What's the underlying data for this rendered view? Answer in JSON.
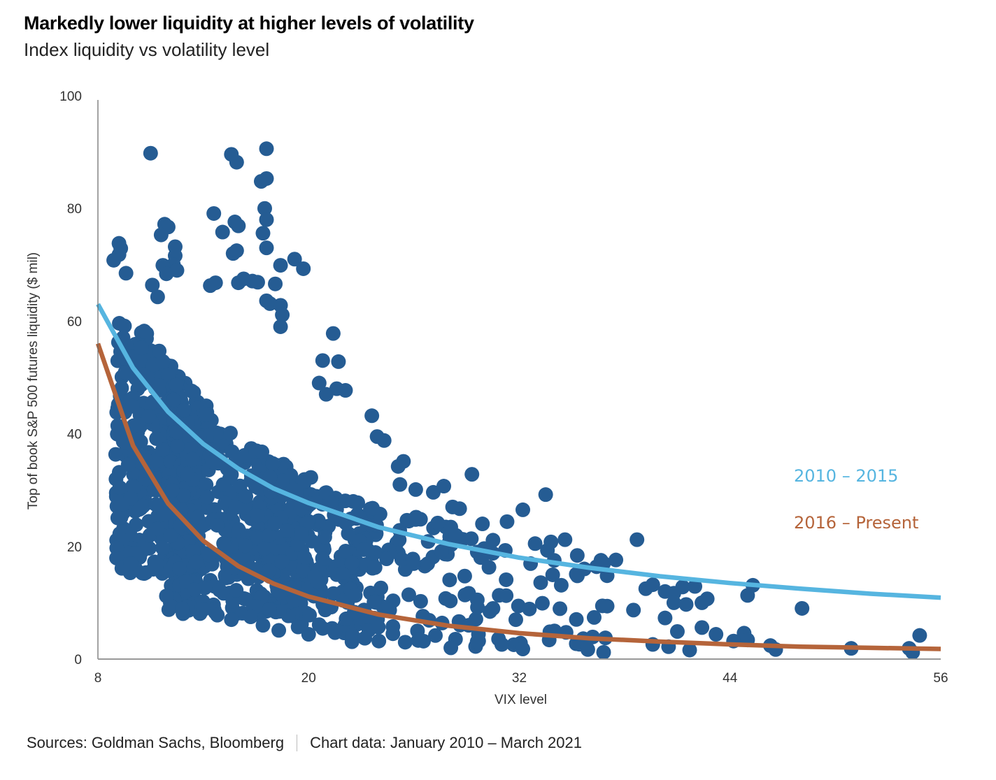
{
  "header": {
    "title": "Markedly lower liquidity at higher levels of volatility",
    "subtitle": "Index liquidity vs volatility level"
  },
  "footer": {
    "sources": "Sources: Goldman Sachs, Bloomberg",
    "chart_note": "Chart data: January 2010 – March 2021"
  },
  "chart_data": {
    "type": "scatter",
    "title": "Markedly lower liquidity at higher levels of volatility",
    "subtitle": "Index liquidity vs volatility level",
    "xlabel": "VIX level",
    "ylabel": "Top of book S&P 500 futures liquidity ($ mil)",
    "xlim": [
      8,
      56
    ],
    "ylim": [
      0,
      100
    ],
    "xticks": [
      "8",
      "20",
      "32",
      "44",
      "56"
    ],
    "yticks": [
      "0",
      "20",
      "40",
      "60",
      "80",
      "100"
    ],
    "grid": false,
    "legend": "right, inline labels",
    "colors": {
      "points": "#255c93",
      "fit_2010_2015": "#56b5e0",
      "fit_2016_present": "#b5643a"
    },
    "series": [
      {
        "name": "Daily observations",
        "points_note": "approximate sample of visible points",
        "points": [
          [
            11.0,
            89.8
          ],
          [
            15.6,
            89.6
          ],
          [
            15.9,
            88.2
          ],
          [
            17.6,
            90.6
          ],
          [
            17.3,
            84.8
          ],
          [
            17.6,
            85.3
          ],
          [
            17.5,
            80.0
          ],
          [
            17.6,
            78.0
          ],
          [
            17.4,
            75.6
          ],
          [
            17.6,
            73.0
          ],
          [
            14.6,
            79.1
          ],
          [
            15.1,
            75.8
          ],
          [
            15.8,
            77.6
          ],
          [
            16.0,
            76.9
          ],
          [
            15.7,
            72.0
          ],
          [
            15.9,
            72.5
          ],
          [
            18.4,
            69.9
          ],
          [
            19.2,
            71.0
          ],
          [
            19.7,
            69.3
          ],
          [
            11.8,
            77.2
          ],
          [
            12.0,
            76.7
          ],
          [
            11.6,
            75.3
          ],
          [
            12.4,
            73.2
          ],
          [
            12.4,
            71.6
          ],
          [
            12.3,
            70.0
          ],
          [
            11.7,
            69.9
          ],
          [
            12.5,
            69.0
          ],
          [
            11.9,
            68.4
          ],
          [
            9.2,
            73.8
          ],
          [
            9.3,
            72.9
          ],
          [
            9.2,
            71.8
          ],
          [
            9.6,
            68.5
          ],
          [
            8.9,
            70.8
          ],
          [
            11.1,
            66.4
          ],
          [
            11.4,
            64.3
          ],
          [
            14.4,
            66.3
          ],
          [
            14.7,
            66.8
          ],
          [
            16.0,
            66.8
          ],
          [
            16.3,
            67.5
          ],
          [
            16.8,
            67.1
          ],
          [
            17.1,
            66.9
          ],
          [
            18.1,
            66.6
          ],
          [
            17.6,
            63.6
          ],
          [
            17.8,
            63.1
          ],
          [
            18.4,
            62.8
          ],
          [
            18.5,
            61.1
          ],
          [
            18.4,
            59.0
          ],
          [
            21.4,
            57.8
          ],
          [
            21.7,
            52.8
          ],
          [
            20.8,
            53.0
          ],
          [
            21.6,
            48.0
          ],
          [
            20.6,
            49.0
          ],
          [
            21.0,
            47.0
          ],
          [
            22.1,
            47.7
          ],
          [
            23.6,
            43.2
          ],
          [
            23.9,
            39.5
          ],
          [
            24.3,
            38.8
          ],
          [
            25.4,
            35.1
          ],
          [
            25.1,
            34.2
          ],
          [
            29.3,
            32.8
          ],
          [
            25.2,
            31.0
          ],
          [
            26.1,
            30.1
          ],
          [
            27.1,
            29.6
          ],
          [
            27.7,
            30.7
          ],
          [
            28.2,
            27.0
          ],
          [
            28.6,
            26.7
          ],
          [
            29.9,
            24.0
          ],
          [
            31.3,
            24.4
          ],
          [
            32.2,
            26.5
          ],
          [
            33.5,
            29.2
          ],
          [
            30.5,
            21.1
          ],
          [
            31.2,
            19.3
          ],
          [
            32.9,
            20.5
          ],
          [
            33.8,
            20.8
          ],
          [
            34.6,
            21.2
          ],
          [
            33.6,
            19.3
          ],
          [
            35.3,
            18.4
          ],
          [
            36.8,
            17.0
          ],
          [
            37.5,
            17.6
          ],
          [
            38.7,
            21.2
          ],
          [
            35.7,
            16.0
          ],
          [
            36.4,
            16.4
          ],
          [
            37.0,
            14.8
          ],
          [
            39.2,
            12.5
          ],
          [
            39.6,
            13.2
          ],
          [
            40.3,
            12.0
          ],
          [
            40.8,
            11.7
          ],
          [
            41.3,
            12.8
          ],
          [
            42.0,
            12.9
          ],
          [
            40.8,
            10.0
          ],
          [
            41.5,
            9.7
          ],
          [
            42.7,
            10.7
          ],
          [
            42.4,
            10.0
          ],
          [
            45.0,
            11.3
          ],
          [
            45.3,
            13.1
          ],
          [
            48.1,
            9.0
          ],
          [
            38.5,
            8.7
          ],
          [
            37.0,
            9.4
          ],
          [
            40.3,
            7.3
          ],
          [
            41.0,
            4.9
          ],
          [
            42.4,
            5.6
          ],
          [
            43.2,
            4.4
          ],
          [
            44.2,
            3.2
          ],
          [
            44.8,
            4.6
          ],
          [
            45.0,
            3.4
          ],
          [
            46.3,
            2.4
          ],
          [
            46.6,
            1.7
          ],
          [
            50.9,
            1.9
          ],
          [
            54.2,
            1.9
          ],
          [
            54.4,
            1.2
          ],
          [
            54.8,
            4.2
          ],
          [
            41.7,
            1.6
          ],
          [
            40.5,
            2.2
          ],
          [
            39.6,
            2.6
          ],
          [
            35.9,
            1.7
          ],
          [
            36.8,
            1.2
          ],
          [
            32.2,
            1.8
          ],
          [
            28.1,
            2.0
          ],
          [
            29.6,
            3.1
          ],
          [
            34.0,
            5.0
          ],
          [
            31.8,
            7.0
          ],
          [
            30.5,
            9.0
          ],
          [
            31.0,
            2.6
          ],
          [
            33.7,
            3.4
          ],
          [
            27.6,
            6.4
          ],
          [
            26.2,
            5.0
          ],
          [
            24.8,
            4.5
          ],
          [
            24.0,
            3.2
          ],
          [
            25.5,
            3.0
          ],
          [
            26.3,
            3.5
          ],
          [
            22.5,
            4.2
          ],
          [
            23.2,
            3.7
          ],
          [
            21.5,
            4.7
          ],
          [
            20.0,
            4.4
          ],
          [
            19.4,
            5.7
          ],
          [
            18.3,
            5.1
          ],
          [
            17.4,
            6.0
          ],
          [
            16.7,
            7.5
          ],
          [
            15.6,
            7.0
          ],
          [
            14.8,
            7.8
          ],
          [
            14.0,
            8.8
          ],
          [
            12.2,
            9.3
          ],
          [
            12.8,
            8.9
          ],
          [
            11.9,
            11.2
          ]
        ],
        "density_regions": [
          {
            "x_range": [
              9,
              14
            ],
            "y_range": [
              15,
              60
            ],
            "density": "very high"
          },
          {
            "x_range": [
              12,
              20
            ],
            "y_range": [
              8,
              55
            ],
            "density": "very high"
          },
          {
            "x_range": [
              17,
              24
            ],
            "y_range": [
              5,
              45
            ],
            "density": "high"
          },
          {
            "x_range": [
              22,
              30
            ],
            "y_range": [
              3,
              30
            ],
            "density": "medium"
          },
          {
            "x_range": [
              29,
              37
            ],
            "y_range": [
              2,
              20
            ],
            "density": "low"
          }
        ]
      },
      {
        "name": "2010 – 2015",
        "kind": "fit_curve",
        "model": "power",
        "x": [
          8,
          10,
          12,
          14,
          16,
          18,
          20,
          24,
          28,
          32,
          36,
          40,
          44,
          48,
          52,
          56
        ],
        "values": [
          63.0,
          51.7,
          43.9,
          38.2,
          33.8,
          30.3,
          27.7,
          23.4,
          20.4,
          18.0,
          16.2,
          14.7,
          13.5,
          12.5,
          11.6,
          10.9
        ]
      },
      {
        "name": "2016 – Present",
        "kind": "fit_curve",
        "model": "power",
        "x": [
          8,
          10,
          12,
          14,
          16,
          18,
          20,
          24,
          28,
          32,
          36,
          40,
          44,
          48,
          52,
          56
        ],
        "values": [
          56.0,
          37.9,
          27.6,
          21.0,
          16.5,
          13.4,
          11.1,
          7.9,
          5.9,
          4.6,
          3.7,
          3.1,
          2.6,
          2.2,
          2.0,
          1.8
        ]
      }
    ],
    "annotations": [
      {
        "text": "2010 – 2015",
        "series": "2010 – 2015"
      },
      {
        "text": "2016 – Present",
        "series": "2016 – Present"
      }
    ]
  }
}
